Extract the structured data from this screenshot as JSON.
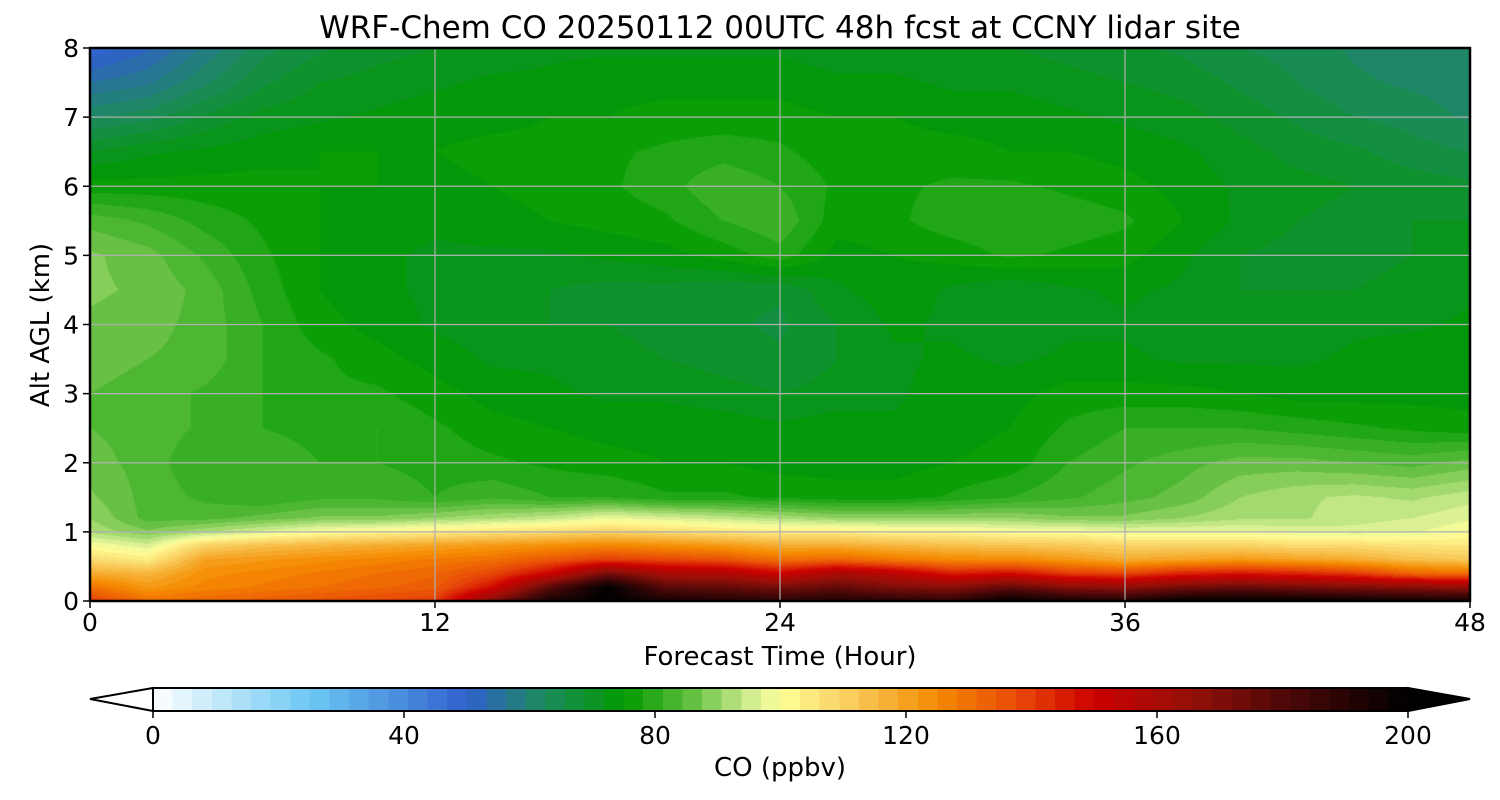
{
  "chart_data": {
    "type": "heatmap",
    "title": "WRF-Chem CO  20250112 00UTC 48h fcst at CCNY lidar site",
    "xlabel": "Forecast Time (Hour)",
    "ylabel": "Alt AGL (km)",
    "xlim": [
      0,
      48
    ],
    "ylim": [
      0,
      8
    ],
    "x_ticks": [
      "0",
      "12",
      "24",
      "36",
      "48"
    ],
    "y_ticks": [
      "0",
      "1",
      "2",
      "3",
      "4",
      "5",
      "6",
      "7",
      "8"
    ],
    "grid": true,
    "colorbar": {
      "label": "CO  (ppbv)",
      "min": 0,
      "max": 200,
      "ticks": [
        "0",
        "40",
        "80",
        "120",
        "160",
        "200"
      ],
      "extend": "both",
      "stops": [
        {
          "value": 0,
          "color": "#ffffff"
        },
        {
          "value": 25,
          "color": "#6cc8f4"
        },
        {
          "value": 50,
          "color": "#3060cc"
        },
        {
          "value": 62,
          "color": "#1e8a60"
        },
        {
          "value": 75,
          "color": "#009a00"
        },
        {
          "value": 85,
          "color": "#59bb39"
        },
        {
          "value": 95,
          "color": "#d0ec90"
        },
        {
          "value": 100,
          "color": "#ffff9a"
        },
        {
          "value": 112,
          "color": "#f8c858"
        },
        {
          "value": 125,
          "color": "#f58a00"
        },
        {
          "value": 138,
          "color": "#e84808"
        },
        {
          "value": 150,
          "color": "#cc0000"
        },
        {
          "value": 165,
          "color": "#961008"
        },
        {
          "value": 180,
          "color": "#500808"
        },
        {
          "value": 200,
          "color": "#000000"
        }
      ]
    },
    "x_hours": [
      0,
      2,
      4,
      6,
      8,
      10,
      12,
      14,
      16,
      18,
      20,
      22,
      24,
      26,
      28,
      30,
      32,
      34,
      36,
      38,
      40,
      42,
      44,
      46,
      48
    ],
    "z_km": [
      0,
      0.2,
      0.4,
      0.6,
      0.8,
      1.0,
      1.2,
      1.5,
      2.0,
      2.5,
      3.0,
      3.5,
      4.0,
      4.5,
      5.0,
      5.5,
      6.0,
      6.5,
      7.0,
      7.5,
      8.0
    ],
    "co_ppbv": [
      [
        140,
        130,
        132,
        134,
        136,
        138,
        140,
        170,
        195,
        200,
        195,
        192,
        190,
        192,
        190,
        188,
        200,
        195,
        192,
        200,
        200,
        200,
        198,
        196,
        195
      ],
      [
        130,
        122,
        126,
        128,
        130,
        132,
        134,
        148,
        178,
        200,
        178,
        176,
        172,
        176,
        170,
        168,
        176,
        168,
        166,
        172,
        175,
        172,
        170,
        168,
        165
      ],
      [
        118,
        116,
        124,
        126,
        128,
        130,
        132,
        138,
        150,
        172,
        160,
        158,
        150,
        160,
        155,
        145,
        148,
        140,
        138,
        144,
        146,
        144,
        140,
        132,
        130
      ],
      [
        108,
        104,
        120,
        122,
        124,
        126,
        128,
        130,
        135,
        140,
        138,
        136,
        130,
        132,
        128,
        125,
        125,
        122,
        118,
        120,
        122,
        120,
        118,
        114,
        112
      ],
      [
        100,
        96,
        110,
        114,
        116,
        118,
        120,
        122,
        124,
        126,
        124,
        122,
        118,
        118,
        116,
        114,
        113,
        112,
        110,
        110,
        110,
        108,
        108,
        106,
        105
      ],
      [
        92,
        88,
        92,
        96,
        100,
        102,
        104,
        106,
        108,
        110,
        108,
        106,
        104,
        104,
        102,
        102,
        100,
        100,
        98,
        98,
        98,
        97,
        96,
        97,
        100
      ],
      [
        90,
        84,
        84,
        86,
        88,
        88,
        90,
        92,
        94,
        98,
        96,
        94,
        92,
        90,
        90,
        90,
        90,
        88,
        88,
        90,
        92,
        92,
        94,
        95,
        97
      ],
      [
        88,
        84,
        82,
        80,
        82,
        82,
        80,
        82,
        80,
        80,
        78,
        78,
        77,
        76,
        76,
        78,
        80,
        82,
        84,
        86,
        90,
        92,
        93,
        92,
        94
      ],
      [
        86,
        84,
        80,
        82,
        80,
        80,
        79,
        78,
        77,
        76,
        75,
        75,
        74,
        74,
        74,
        75,
        76,
        80,
        82,
        84,
        86,
        86,
        85,
        84,
        86
      ],
      [
        85,
        84,
        82,
        80,
        79,
        80,
        78,
        76,
        75,
        74,
        74,
        74,
        73,
        74,
        73,
        74,
        75,
        78,
        80,
        80,
        80,
        79,
        78,
        77,
        76
      ],
      [
        85,
        84,
        82,
        80,
        78,
        78,
        76,
        74,
        73,
        72,
        72,
        71,
        70,
        71,
        72,
        74,
        74,
        76,
        76,
        76,
        75,
        74,
        74,
        74,
        74
      ],
      [
        86,
        85,
        84,
        80,
        78,
        76,
        74,
        72,
        72,
        71,
        70,
        69,
        68,
        70,
        72,
        73,
        72,
        73,
        73,
        72,
        72,
        72,
        73,
        74,
        74
      ],
      [
        87,
        86,
        84,
        80,
        76,
        74,
        72,
        71,
        70,
        70,
        69,
        68,
        67,
        70,
        73,
        72,
        70,
        72,
        72,
        71,
        71,
        71,
        72,
        72,
        73
      ],
      [
        88,
        87,
        84,
        79,
        75,
        73,
        72,
        71,
        70,
        69,
        69,
        68,
        68,
        72,
        74,
        72,
        70,
        72,
        73,
        72,
        70,
        70,
        70,
        71,
        72
      ],
      [
        88,
        86,
        82,
        78,
        75,
        73,
        72,
        72,
        72,
        73,
        74,
        76,
        79,
        74,
        75,
        76,
        78,
        77,
        76,
        73,
        70,
        69,
        69,
        70,
        70
      ],
      [
        84,
        82,
        79,
        77,
        75,
        74,
        73,
        74,
        75,
        76,
        77,
        80,
        82,
        76,
        77,
        79,
        80,
        79,
        78,
        75,
        72,
        70,
        69,
        70,
        70
      ],
      [
        76,
        76,
        76,
        76,
        75,
        75,
        74,
        75,
        76,
        77,
        79,
        82,
        80,
        77,
        77,
        78,
        78,
        77,
        76,
        74,
        72,
        71,
        70,
        69,
        68
      ],
      [
        70,
        72,
        73,
        74,
        75,
        75,
        75,
        76,
        76,
        77,
        78,
        79,
        78,
        76,
        76,
        76,
        75,
        75,
        74,
        73,
        71,
        69,
        68,
        66,
        65
      ],
      [
        62,
        64,
        68,
        71,
        72,
        73,
        74,
        74,
        75,
        75,
        76,
        76,
        76,
        75,
        75,
        74,
        74,
        73,
        72,
        71,
        69,
        67,
        65,
        64,
        62
      ],
      [
        55,
        57,
        62,
        67,
        70,
        71,
        72,
        73,
        73,
        74,
        74,
        74,
        74,
        73,
        73,
        72,
        72,
        71,
        70,
        69,
        67,
        65,
        63,
        62,
        61
      ],
      [
        48,
        52,
        58,
        64,
        67,
        69,
        70,
        71,
        72,
        72,
        72,
        72,
        72,
        71,
        71,
        70,
        70,
        69,
        68,
        67,
        65,
        64,
        62,
        61,
        60
      ]
    ]
  }
}
